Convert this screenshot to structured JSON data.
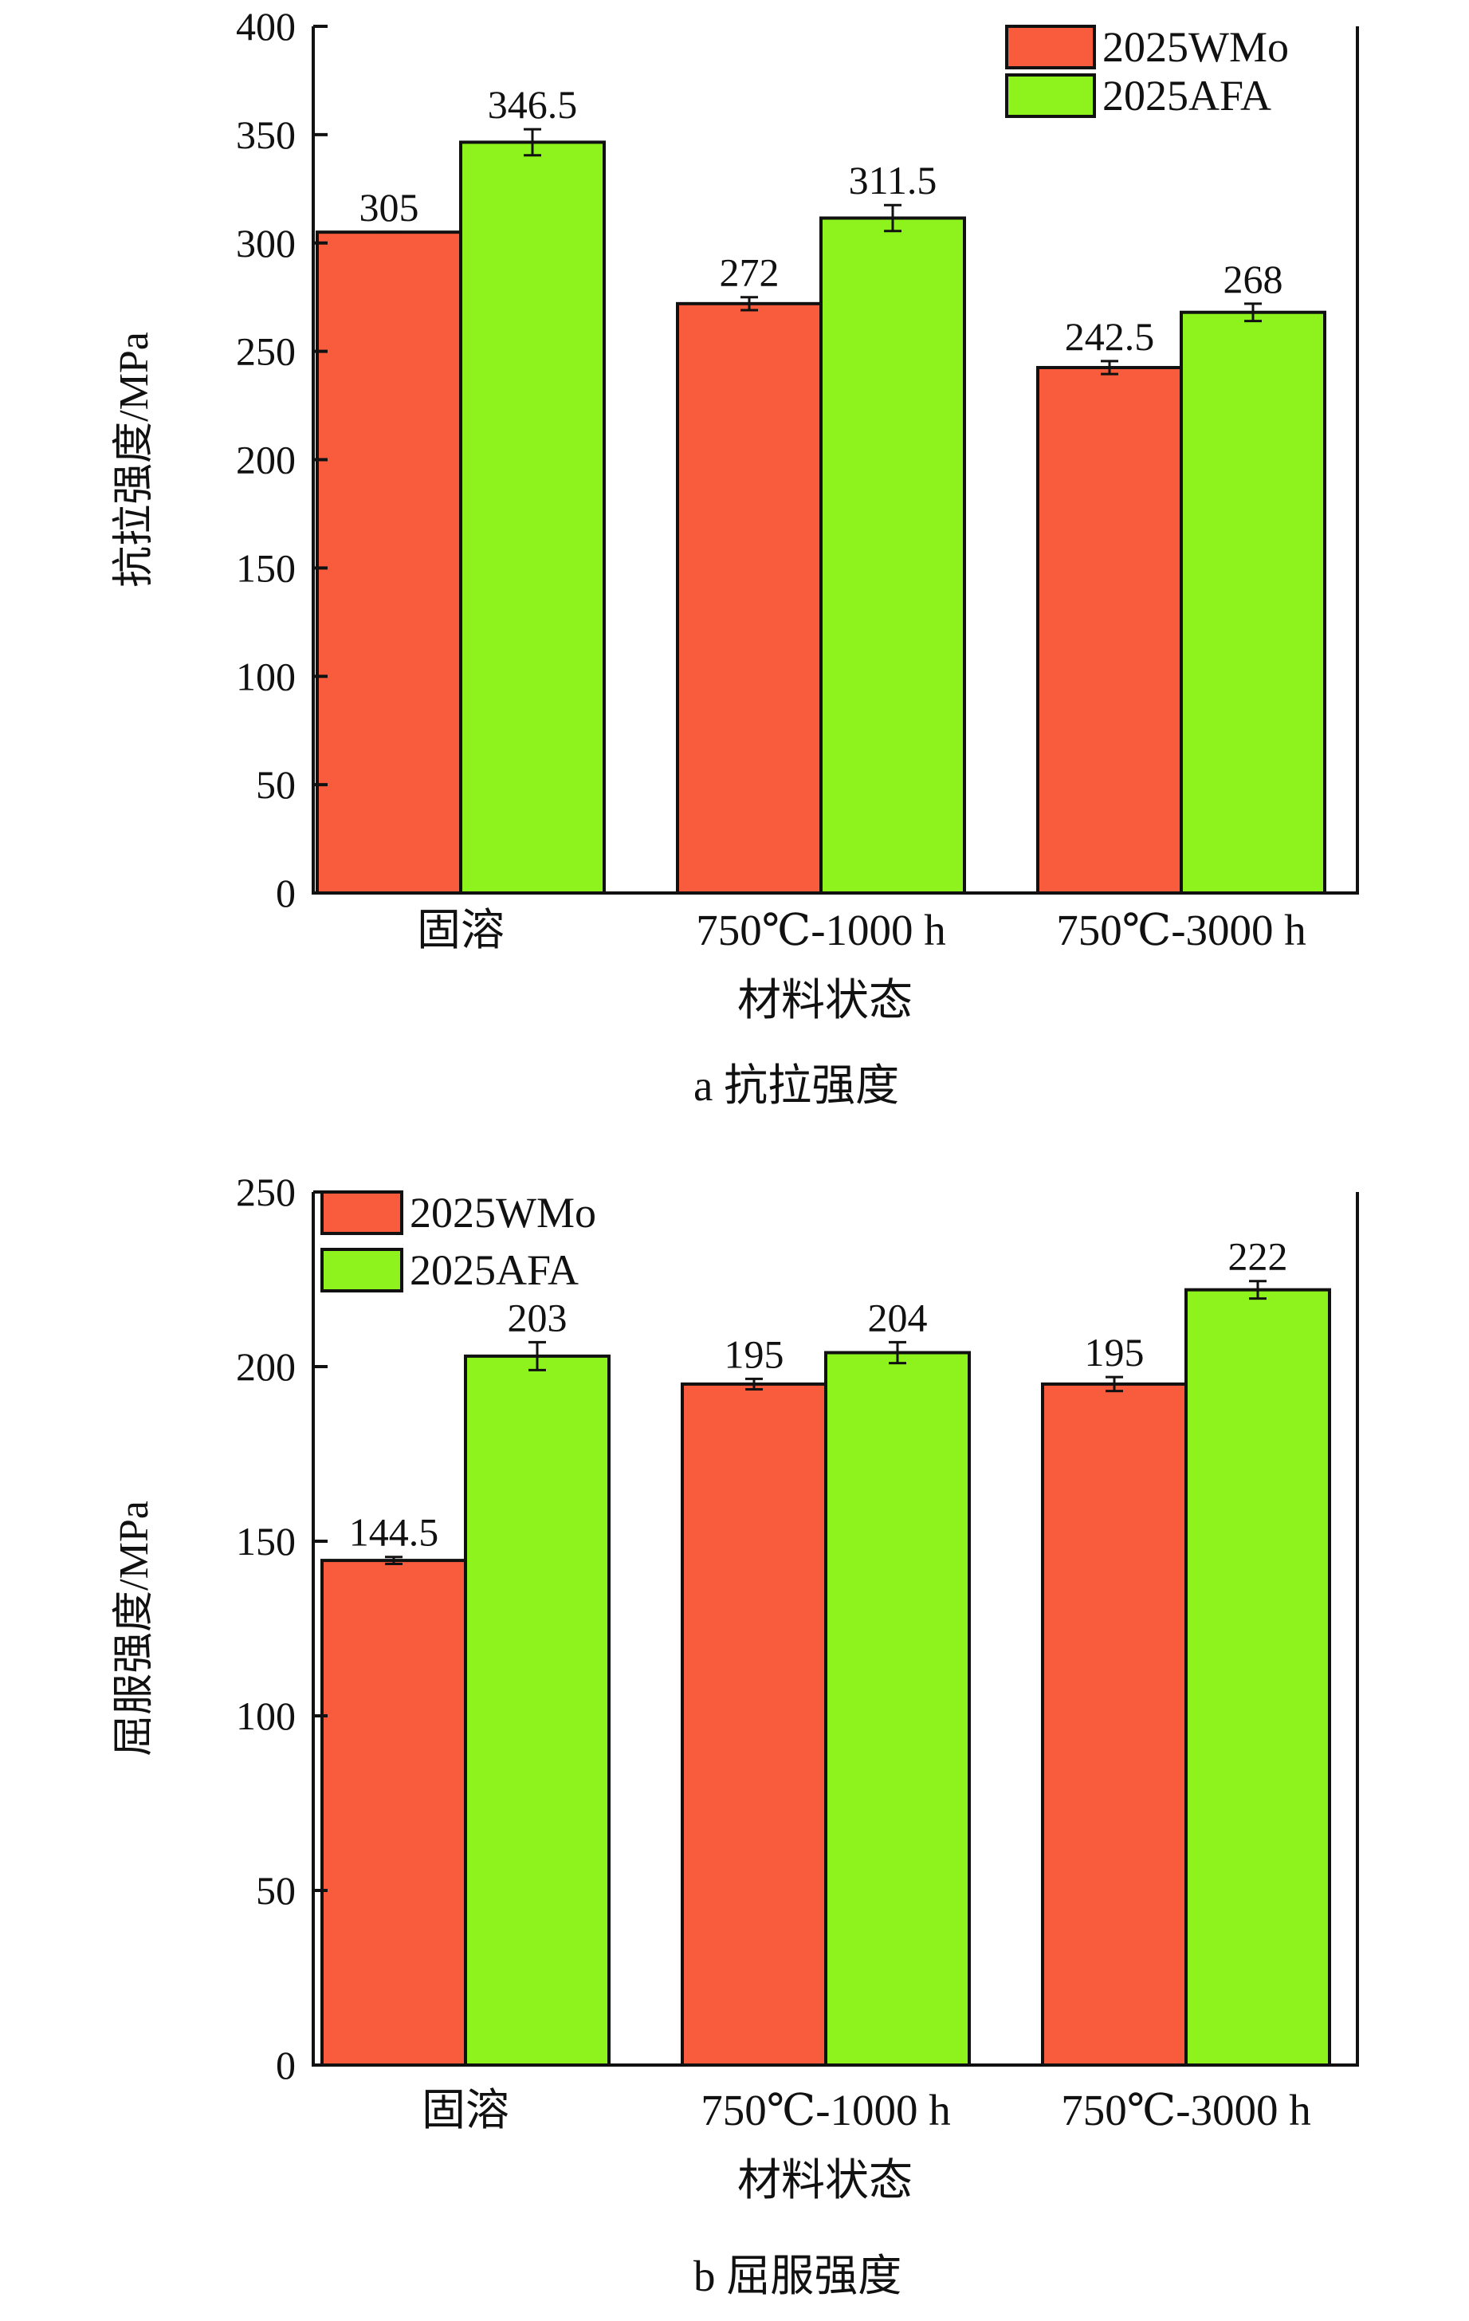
{
  "chart_data": [
    {
      "type": "bar",
      "caption": "a  抗拉强度",
      "xlabel": "材料状态",
      "ylabel": "抗拉强度/MPa",
      "ylim": [
        0,
        400
      ],
      "yticks": [
        0,
        50,
        100,
        150,
        200,
        250,
        300,
        350,
        400
      ],
      "categories": [
        "固溶",
        "750℃-1000 h",
        "750℃-3000 h"
      ],
      "series": [
        {
          "name": "2025WMo",
          "color": "#f95c3c",
          "values": [
            305,
            272,
            242.5
          ],
          "labels": [
            "305",
            "272",
            "242.5"
          ],
          "errors": [
            0,
            3,
            3
          ]
        },
        {
          "name": "2025AFA",
          "color": "#8ef21c",
          "values": [
            346.5,
            311.5,
            268
          ],
          "labels": [
            "346.5",
            "311.5",
            "268"
          ],
          "errors": [
            6,
            6,
            4
          ]
        }
      ],
      "legend": "top-right",
      "grid": false
    },
    {
      "type": "bar",
      "caption": "b  屈服强度",
      "xlabel": "材料状态",
      "ylabel": "屈服强度/MPa",
      "ylim": [
        0,
        250
      ],
      "yticks": [
        0,
        50,
        100,
        150,
        200,
        250
      ],
      "categories": [
        "固溶",
        "750℃-1000 h",
        "750℃-3000 h"
      ],
      "series": [
        {
          "name": "2025WMo",
          "color": "#f95c3c",
          "values": [
            144.5,
            195,
            195
          ],
          "labels": [
            "144.5",
            "195",
            "195"
          ],
          "errors": [
            1,
            1.5,
            2
          ]
        },
        {
          "name": "2025AFA",
          "color": "#8ef21c",
          "values": [
            203,
            204,
            222
          ],
          "labels": [
            "203",
            "204",
            "222"
          ],
          "errors": [
            4,
            3,
            2.5
          ]
        }
      ],
      "legend": "top-left",
      "grid": false
    }
  ]
}
